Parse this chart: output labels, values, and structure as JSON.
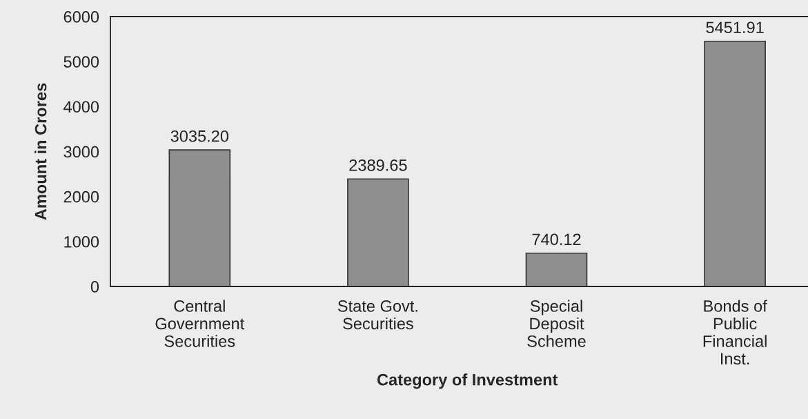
{
  "chart_data": {
    "type": "bar",
    "xlabel": "Category of Investment",
    "ylabel": "Amount in Crores",
    "categories": [
      "Central\nGovernment\nSecurities",
      "State Govt.\nSecurities",
      "Special\nDeposit\nScheme",
      "Bonds of\nPublic\nFinancial\nInst."
    ],
    "values": [
      3035.2,
      2389.65,
      740.12,
      5451.91
    ],
    "value_labels": [
      "3035.20",
      "2389.65",
      "740.12",
      "5451.91"
    ],
    "color": "#8f8f8f",
    "ylim": [
      0,
      6000
    ],
    "yticks": [
      0,
      1000,
      2000,
      3000,
      4000,
      5000,
      6000
    ],
    "grid": false
  }
}
